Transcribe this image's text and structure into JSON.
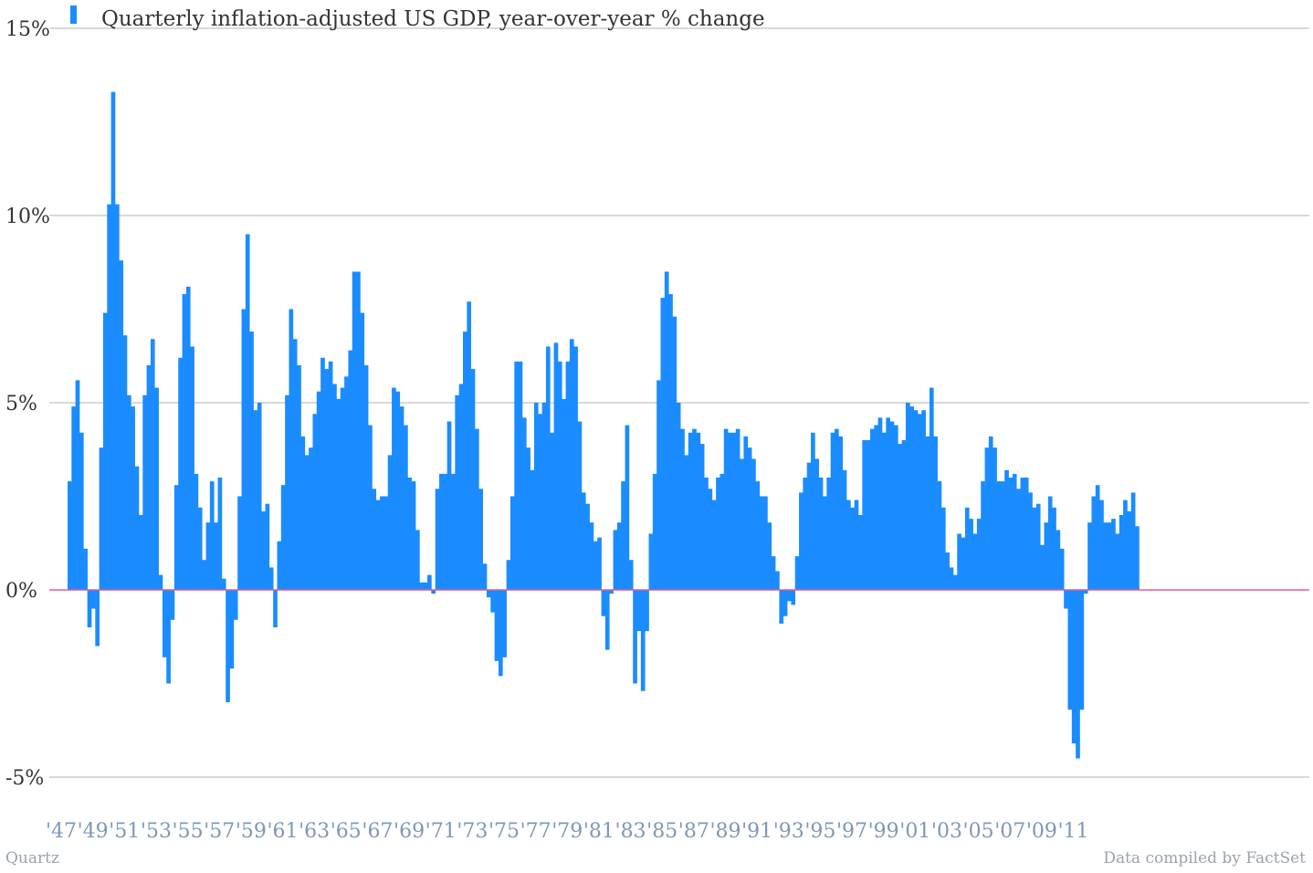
{
  "chart_data": {
    "type": "bar",
    "title": "",
    "xlabel": "",
    "ylabel": "",
    "ylim": [
      -5,
      15
    ],
    "yticks": [
      {
        "value": 15,
        "label": "15%"
      },
      {
        "value": 10,
        "label": "10%"
      },
      {
        "value": 5,
        "label": "5%"
      },
      {
        "value": 0,
        "label": "0%"
      },
      {
        "value": -5,
        "label": "-5%"
      }
    ],
    "xticks": [
      {
        "year": 1947,
        "label": "'47"
      },
      {
        "year": 1949,
        "label": "'49"
      },
      {
        "year": 1951,
        "label": "'51"
      },
      {
        "year": 1953,
        "label": "'53"
      },
      {
        "year": 1955,
        "label": "'55"
      },
      {
        "year": 1957,
        "label": "'57"
      },
      {
        "year": 1959,
        "label": "'59"
      },
      {
        "year": 1961,
        "label": "'61"
      },
      {
        "year": 1963,
        "label": "'63"
      },
      {
        "year": 1965,
        "label": "'65"
      },
      {
        "year": 1967,
        "label": "'67"
      },
      {
        "year": 1969,
        "label": "'69"
      },
      {
        "year": 1971,
        "label": "'71"
      },
      {
        "year": 1973,
        "label": "'73"
      },
      {
        "year": 1975,
        "label": "'75"
      },
      {
        "year": 1977,
        "label": "'77"
      },
      {
        "year": 1979,
        "label": "'79"
      },
      {
        "year": 1981,
        "label": "'81"
      },
      {
        "year": 1983,
        "label": "'83"
      },
      {
        "year": 1985,
        "label": "'85"
      },
      {
        "year": 1987,
        "label": "'87"
      },
      {
        "year": 1989,
        "label": "'89"
      },
      {
        "year": 1991,
        "label": "'91"
      },
      {
        "year": 1993,
        "label": "'93"
      },
      {
        "year": 1995,
        "label": "'95"
      },
      {
        "year": 1997,
        "label": "'97"
      },
      {
        "year": 1999,
        "label": "'99"
      },
      {
        "year": 2001,
        "label": "'01"
      },
      {
        "year": 2003,
        "label": "'03"
      },
      {
        "year": 2005,
        "label": "'05"
      },
      {
        "year": 2007,
        "label": "'07"
      },
      {
        "year": 2009,
        "label": "'09"
      },
      {
        "year": 2011,
        "label": "'11"
      }
    ],
    "grid": true,
    "legend_placement": "top-left",
    "colors": {
      "bar": "#1a8cff",
      "zero_line": "#e05a9a",
      "grid": "#b3b3b3"
    },
    "series": [
      {
        "name": "Quarterly inflation-adjusted US GDP, year-over-year % change",
        "start": "1947 Q1",
        "frequency": "quarterly",
        "values": [
          2.9,
          4.9,
          5.6,
          4.2,
          1.1,
          -1.0,
          -0.5,
          -1.5,
          3.8,
          7.4,
          10.3,
          13.3,
          10.3,
          8.8,
          6.8,
          5.2,
          4.9,
          3.3,
          2.0,
          5.2,
          6.0,
          6.7,
          5.4,
          0.4,
          -1.8,
          -2.5,
          -0.8,
          2.8,
          6.2,
          7.9,
          8.1,
          6.5,
          3.1,
          2.2,
          0.8,
          1.8,
          2.9,
          1.8,
          3.0,
          0.3,
          -3.0,
          -2.1,
          -0.8,
          2.5,
          7.5,
          9.5,
          6.9,
          4.8,
          5.0,
          2.1,
          2.3,
          0.6,
          -1.0,
          1.3,
          2.8,
          5.2,
          7.5,
          6.7,
          6.0,
          4.1,
          3.6,
          3.8,
          4.7,
          5.3,
          6.2,
          5.9,
          6.1,
          5.5,
          5.1,
          5.4,
          5.7,
          6.4,
          8.5,
          8.5,
          7.4,
          6.0,
          4.4,
          2.7,
          2.4,
          2.5,
          2.5,
          3.6,
          5.4,
          5.3,
          4.9,
          4.4,
          3.0,
          2.9,
          1.6,
          0.2,
          0.2,
          0.4,
          -0.1,
          2.7,
          3.1,
          3.1,
          4.5,
          3.1,
          5.2,
          5.5,
          6.9,
          7.7,
          5.9,
          4.3,
          2.7,
          0.7,
          -0.2,
          -0.6,
          -1.9,
          -2.3,
          -1.8,
          0.8,
          2.5,
          6.1,
          6.1,
          4.6,
          3.8,
          3.2,
          5.0,
          4.7,
          5.0,
          6.5,
          4.2,
          6.6,
          6.1,
          5.1,
          6.1,
          6.7,
          6.5,
          4.5,
          2.6,
          2.3,
          1.8,
          1.3,
          1.4,
          -0.7,
          -1.6,
          -0.1,
          1.6,
          1.8,
          2.9,
          4.4,
          0.8,
          -2.5,
          -1.1,
          -2.7,
          -1.1,
          1.5,
          3.1,
          5.6,
          7.8,
          8.5,
          7.9,
          7.3,
          5.0,
          4.3,
          3.6,
          4.2,
          4.3,
          4.2,
          3.9,
          3.0,
          2.7,
          2.4,
          3.0,
          3.1,
          4.3,
          4.2,
          4.2,
          4.3,
          3.5,
          4.1,
          3.8,
          3.5,
          2.9,
          2.5,
          2.5,
          1.8,
          0.9,
          0.5,
          -0.9,
          -0.7,
          -0.3,
          -0.4,
          0.9,
          2.6,
          3.0,
          3.4,
          4.2,
          3.5,
          3.0,
          2.5,
          3.0,
          4.2,
          4.3,
          4.1,
          3.2,
          2.4,
          2.2,
          2.4,
          2.0,
          4.0,
          4.0,
          4.3,
          4.4,
          4.6,
          4.2,
          4.6,
          4.5,
          4.4,
          3.9,
          4.0,
          5.0,
          4.9,
          4.8,
          4.7,
          4.8,
          4.1,
          5.4,
          4.1,
          2.9,
          2.2,
          1.0,
          0.6,
          0.4,
          1.5,
          1.4,
          2.2,
          1.9,
          1.5,
          1.9,
          2.9,
          3.8,
          4.1,
          3.8,
          2.9,
          2.9,
          3.2,
          3.0,
          3.1,
          2.7,
          3.0,
          3.0,
          2.6,
          2.2,
          2.3,
          1.2,
          1.8,
          2.5,
          2.2,
          1.6,
          1.1,
          -0.5,
          -3.2,
          -4.1,
          -4.5,
          -3.2,
          -0.1,
          1.8,
          2.5,
          2.8,
          2.4,
          1.8,
          1.8,
          1.9,
          1.5,
          2.0,
          2.4,
          2.1,
          2.6,
          1.7
        ]
      }
    ]
  },
  "footer": {
    "left": "Quartz",
    "right": "Data compiled by FactSet"
  }
}
